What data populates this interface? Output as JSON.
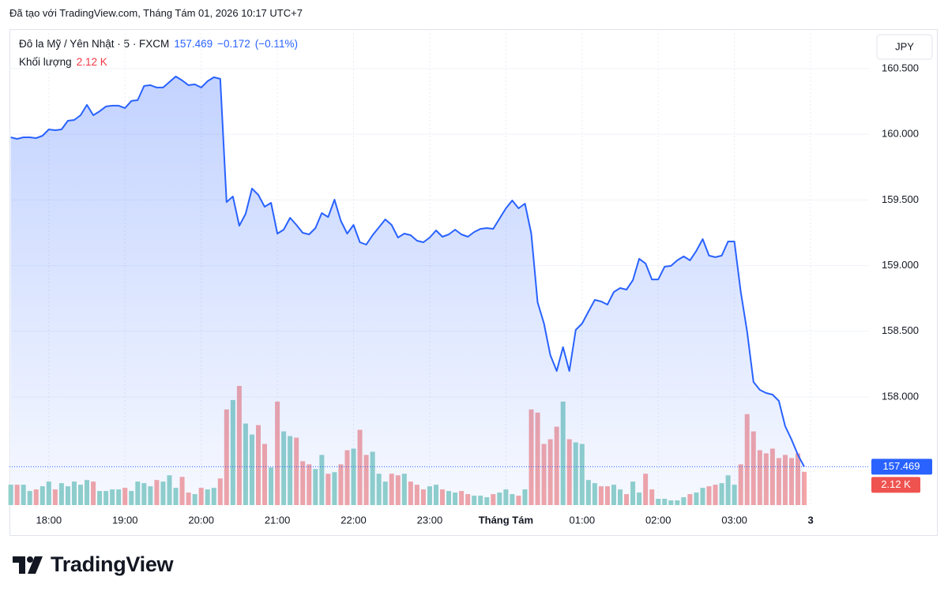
{
  "header": "Đã tạo với TradingView.com, Tháng Tám 01, 2026 10:17 UTC+7",
  "logo": "TradingView",
  "chart_data": {
    "type": "area",
    "symbol": "Đô la Mỹ / Yên Nhật · 5 · FXCM",
    "change": "−0.172",
    "change_pct": "(−0.11%)",
    "currency": "JPY",
    "x": [
      "17:30",
      "17:35",
      "17:40",
      "17:45",
      "17:50",
      "17:55",
      "18:00",
      "18:05",
      "18:10",
      "18:15",
      "18:20",
      "18:25",
      "18:30",
      "18:35",
      "18:40",
      "18:45",
      "18:50",
      "18:55",
      "19:00",
      "19:05",
      "19:10",
      "19:15",
      "19:20",
      "19:25",
      "19:30",
      "19:35",
      "19:40",
      "19:45",
      "19:50",
      "19:55",
      "20:00",
      "20:05",
      "20:10",
      "20:15",
      "20:20",
      "20:25",
      "20:30",
      "20:35",
      "20:40",
      "20:45",
      "20:50",
      "20:55",
      "21:00",
      "21:05",
      "21:10",
      "21:15",
      "21:20",
      "21:25",
      "21:30",
      "21:35",
      "21:40",
      "21:45",
      "21:50",
      "21:55",
      "22:00",
      "22:05",
      "22:10",
      "22:15",
      "22:20",
      "22:25",
      "22:30",
      "22:35",
      "22:40",
      "22:45",
      "22:50",
      "22:55",
      "23:00",
      "23:05",
      "23:10",
      "23:15",
      "23:20",
      "23:25",
      "23:30",
      "23:35",
      "23:40",
      "23:45",
      "23:50",
      "23:55",
      "00:00",
      "00:05",
      "00:10",
      "00:15",
      "00:20",
      "00:25",
      "00:30",
      "00:35",
      "00:40",
      "00:45",
      "00:50",
      "00:55",
      "01:00",
      "01:05",
      "01:10",
      "01:15",
      "01:20",
      "01:25",
      "01:30",
      "01:35",
      "01:40",
      "01:45",
      "01:50",
      "01:55",
      "02:00",
      "02:05",
      "02:10",
      "02:15",
      "02:20",
      "02:25",
      "02:30",
      "02:35",
      "02:40",
      "02:45",
      "02:50",
      "02:55",
      "03:00",
      "03:05",
      "03:10",
      "03:15",
      "03:20",
      "03:25",
      "03:30",
      "03:35",
      "03:40",
      "03:45",
      "03:50",
      "03:55"
    ],
    "series": [
      {
        "name": "Đô la Mỹ / Yên Nhật · 5 · FXCM",
        "color": "#2962ff",
        "values": [
          159.977,
          159.965,
          159.977,
          159.977,
          159.971,
          159.989,
          160.037,
          160.031,
          160.037,
          160.103,
          160.109,
          160.145,
          160.224,
          160.145,
          160.175,
          160.212,
          160.218,
          160.218,
          160.2,
          160.254,
          160.26,
          160.368,
          160.374,
          160.356,
          160.356,
          160.398,
          160.44,
          160.41,
          160.374,
          160.38,
          160.356,
          160.404,
          160.434,
          160.422,
          159.484,
          159.526,
          159.304,
          159.394,
          159.587,
          159.538,
          159.448,
          159.478,
          159.244,
          159.274,
          159.364,
          159.31,
          159.25,
          159.238,
          159.286,
          159.4,
          159.37,
          159.502,
          159.34,
          159.244,
          159.31,
          159.178,
          159.16,
          159.232,
          159.292,
          159.352,
          159.31,
          159.214,
          159.244,
          159.232,
          159.19,
          159.178,
          159.214,
          159.268,
          159.22,
          159.238,
          159.274,
          159.238,
          159.22,
          159.256,
          159.28,
          159.286,
          159.28,
          159.358,
          159.436,
          159.496,
          159.436,
          159.472,
          159.244,
          158.721,
          158.559,
          158.319,
          158.198,
          158.379,
          158.198,
          158.511,
          158.559,
          158.649,
          158.739,
          158.727,
          158.703,
          158.799,
          158.829,
          158.817,
          158.889,
          159.052,
          159.016,
          158.895,
          158.895,
          158.992,
          158.998,
          159.04,
          159.07,
          159.04,
          159.112,
          159.202,
          159.076,
          159.064,
          159.076,
          159.184,
          159.184,
          158.799,
          158.499,
          158.114,
          158.054,
          158.03,
          158.018,
          157.97,
          157.778,
          157.675,
          157.56,
          157.469
        ]
      },
      {
        "name": "Khối lượng",
        "type": "bar",
        "up_color": "#92d2ca",
        "down_color": "#f5a6a6",
        "last_value_label": "2.12 K",
        "values": [
          1.3,
          1.3,
          1.3,
          0.9,
          1.0,
          1.2,
          1.5,
          1.0,
          1.4,
          1.2,
          1.5,
          1.3,
          1.6,
          1.5,
          0.9,
          0.9,
          1.0,
          1.0,
          1.1,
          0.9,
          1.5,
          1.4,
          1.2,
          1.6,
          1.5,
          1.9,
          1.1,
          1.8,
          0.8,
          0.7,
          1.1,
          1.0,
          1.1,
          1.7,
          6.1,
          6.7,
          7.6,
          5.2,
          4.5,
          5.1,
          3.9,
          2.4,
          6.6,
          4.7,
          4.4,
          4.3,
          2.8,
          2.6,
          2.3,
          3.2,
          2.0,
          2.1,
          2.6,
          3.5,
          3.6,
          4.8,
          3.2,
          3.4,
          2.0,
          1.5,
          2.0,
          1.9,
          2.0,
          1.5,
          1.3,
          1.0,
          1.2,
          1.3,
          1.0,
          0.9,
          0.8,
          0.9,
          0.7,
          0.6,
          0.6,
          0.5,
          0.7,
          0.8,
          1.0,
          0.7,
          0.6,
          1.0,
          6.1,
          5.9,
          3.9,
          4.2,
          5.0,
          6.6,
          4.2,
          4.0,
          3.9,
          1.6,
          1.4,
          1.2,
          1.2,
          1.3,
          1.0,
          0.7,
          1.5,
          0.8,
          2.0,
          1.0,
          0.4,
          0.4,
          0.3,
          0.3,
          0.5,
          0.7,
          0.8,
          1.1,
          1.2,
          1.3,
          1.4,
          1.9,
          1.3,
          2.6,
          5.8,
          4.7,
          3.5,
          3.3,
          3.6,
          3.0,
          3.2,
          3.0,
          3.3,
          2.12
        ]
      }
    ],
    "ylim": [
      157.177,
      160.782
    ],
    "yticks": [
      {
        "value": 158,
        "label": "158.000"
      },
      {
        "value": 158.5,
        "label": "158.500"
      },
      {
        "value": 159,
        "label": "159.000"
      },
      {
        "value": 159.5,
        "label": "159.500"
      },
      {
        "value": 160,
        "label": "160.000"
      },
      {
        "value": 160.5,
        "label": "160.500"
      }
    ],
    "xlim": [
      "17:29",
      "04:46"
    ],
    "xticks": [
      "18:00",
      "19:00",
      "20:00",
      "21:00",
      "22:00",
      "23:00",
      {
        "value": "00:00",
        "label": "Tháng Tám"
      },
      "01:00",
      "02:00",
      "03:00",
      {
        "value": "04:00",
        "label": "3"
      }
    ],
    "grid": true
  }
}
